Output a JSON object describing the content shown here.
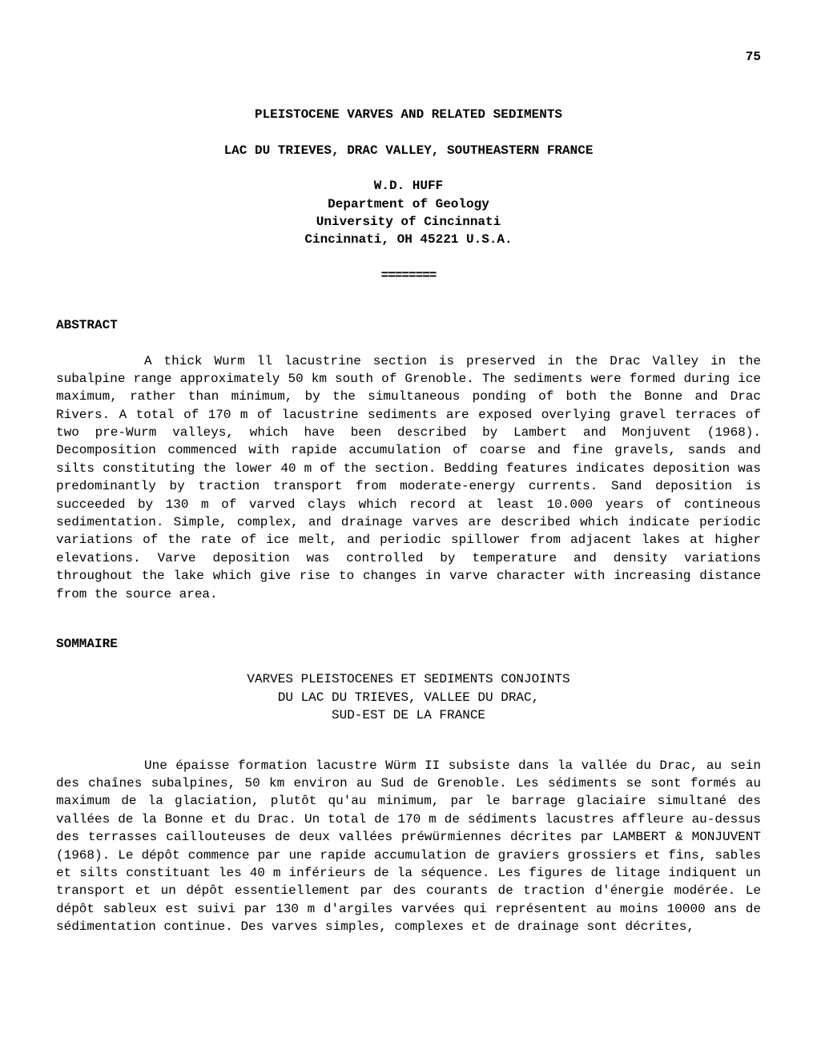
{
  "page_number": "75",
  "title_main": "PLEISTOCENE VARVES AND RELATED SEDIMENTS",
  "title_sub": "LAC DU TRIEVES, DRAC VALLEY, SOUTHEASTERN FRANCE",
  "author": "W.D. HUFF",
  "affiliation_lines": [
    "Department of Geology",
    "University of Cincinnati",
    "Cincinnati, OH 45221 U.S.A."
  ],
  "separator": "========",
  "sections": {
    "abstract": {
      "heading": "ABSTRACT",
      "body": "A thick Wurm ll lacustrine section is preserved in the Drac Valley in the subalpine range approximately 50 km south of Grenoble. The sediments were formed during ice maximum, rather than minimum, by the simultaneous ponding of both the Bonne and Drac Rivers. A total of 170 m of lacustrine sediments are exposed overlying gravel terraces of two pre-Wurm valleys, which have been described by Lambert and Monjuvent (1968). Decomposition commenced with rapide accumulation of coarse and fine gravels, sands and silts constituting the lower 40 m of the section. Bedding features indicates deposition was predominantly by traction transport from moderate-energy currents. Sand deposition is succeeded by 130 m of varved clays which record at least 10.000 years of contineous sedimentation. Simple, complex, and drainage varves are described which indicate periodic variations of the rate of ice melt, and periodic spillower from adjacent lakes at higher elevations. Varve deposition was controlled by temperature and density variations throughout the lake which give rise to changes in varve character with increasing distance from the source area."
    },
    "sommaire": {
      "heading": "SOMMAIRE",
      "subtitle_lines": [
        "VARVES PLEISTOCENES ET SEDIMENTS CONJOINTS",
        "DU LAC DU TRIEVES, VALLEE DU DRAC,",
        "SUD-EST DE LA FRANCE"
      ],
      "body": "Une épaisse formation lacustre Würm II subsiste dans la vallée du Drac, au sein des chaînes subalpines, 50 km environ au Sud de Grenoble. Les sédiments se sont formés au maximum de la glaciation, plutôt qu'au minimum, par le barrage glaciaire simultané des vallées de la Bonne et du Drac. Un total de 170 m de sédiments lacustres affleure au-dessus des terrasses caillouteuses de deux vallées préwürmiennes décrites par LAMBERT & MONJUVENT (1968). Le dépôt commence par une rapide accumulation de graviers grossiers et fins, sables et silts constituant les 40 m inférieurs de la séquence. Les figures de litage indiquent un transport et un dépôt essentiellement par des courants de traction d'énergie modérée. Le dépôt sableux est suivi par 130 m d'argiles varvées qui représentent au moins 10000 ans de sédimentation continue. Des varves simples, complexes et de drainage sont décrites,"
    }
  }
}
